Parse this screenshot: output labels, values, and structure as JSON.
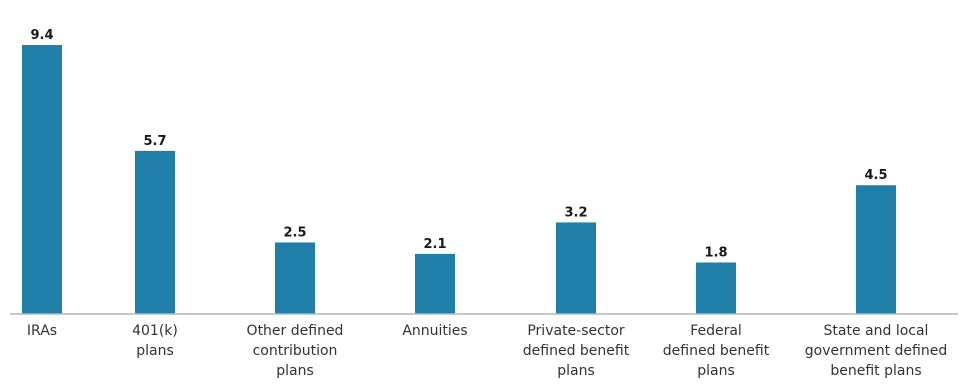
{
  "chart_data": {
    "type": "bar",
    "title": "",
    "xlabel": "",
    "ylabel": "",
    "ylim": [
      0,
      9.4
    ],
    "grid": false,
    "legend": "none",
    "bar_color": "#1f7fa8",
    "axis_color": "#b5b5b5",
    "categories": [
      "IRAs",
      "401(k) plans",
      "Other defined contribution plans",
      "Annuities",
      "Private-sector defined benefit plans",
      "Federal defined benefit plans",
      "State and local government defined benefit plans"
    ],
    "category_lines": [
      [
        "IRAs"
      ],
      [
        "401(k)",
        "plans"
      ],
      [
        "Other defined",
        "contribution",
        "plans"
      ],
      [
        "Annuities"
      ],
      [
        "Private-sector",
        "defined benefit",
        "plans"
      ],
      [
        "Federal",
        "defined benefit",
        "plans"
      ],
      [
        "State and local",
        "government defined",
        "benefit plans"
      ]
    ],
    "values": [
      9.4,
      5.7,
      2.5,
      2.1,
      3.2,
      1.8,
      4.5
    ],
    "value_labels": [
      "9.4",
      "5.7",
      "2.5",
      "2.1",
      "3.2",
      "1.8",
      "4.5"
    ]
  }
}
